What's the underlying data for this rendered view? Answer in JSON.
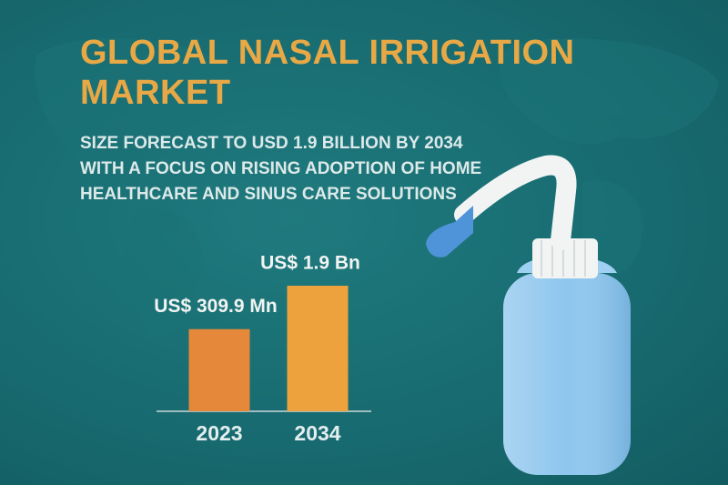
{
  "chart_data": {
    "type": "bar",
    "title": "GLOBAL NASAL IRRIGATION MARKET",
    "subtitle": "SIZE FORECAST TO USD 1.9 BILLION BY 2034 WITH A FOCUS ON RISING ADOPTION OF HOME HEALTHCARE AND SINUS CARE SOLUTIONS",
    "categories": [
      "2023",
      "2034"
    ],
    "values": [
      309900000,
      1900000000
    ],
    "value_labels": [
      "US$ 309.9 Mn",
      "US$ 1.9 Bn"
    ],
    "colors": [
      "#e6883a",
      "#eea23e"
    ],
    "log_scale": true,
    "ylim": [
      10000000,
      3000000000
    ]
  }
}
